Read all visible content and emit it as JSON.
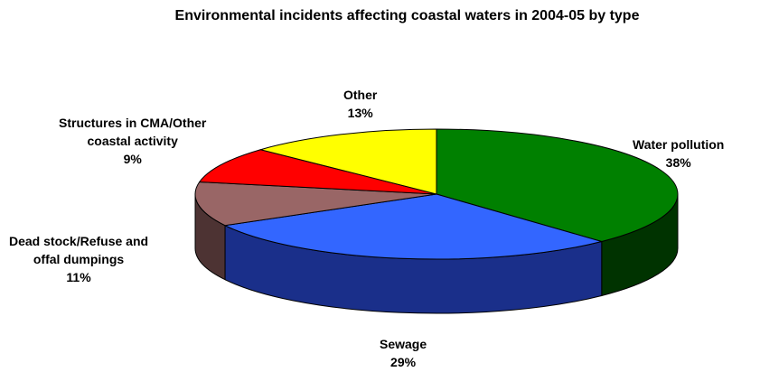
{
  "chart_data": {
    "type": "pie",
    "style": "3d",
    "title": "Environmental incidents affecting coastal waters in 2004-05 by type",
    "slices": [
      {
        "key": "water",
        "label": "Water pollution",
        "value": 38,
        "value_label": "38%",
        "color": "#008000",
        "side_color": "#003300"
      },
      {
        "key": "sewage",
        "label": "Sewage",
        "value": 29,
        "value_label": "29%",
        "color": "#3366ff",
        "side_color": "#1a2f8a"
      },
      {
        "key": "dead",
        "label": "Dead stock/Refuse and offal dumpings",
        "label_lines": [
          "Dead stock/Refuse and",
          "offal dumpings"
        ],
        "value": 11,
        "value_label": "11%",
        "color": "#996666",
        "side_color": "#4d3333"
      },
      {
        "key": "struct",
        "label": "Structures in CMA/Other coastal activity",
        "label_lines": [
          "Structures in CMA/Other",
          "coastal activity"
        ],
        "value": 9,
        "value_label": "9%",
        "color": "#ff0000",
        "side_color": "#800000"
      },
      {
        "key": "other",
        "label": "Other",
        "value": 13,
        "value_label": "13%",
        "color": "#ffff00",
        "side_color": "#808000"
      }
    ]
  }
}
